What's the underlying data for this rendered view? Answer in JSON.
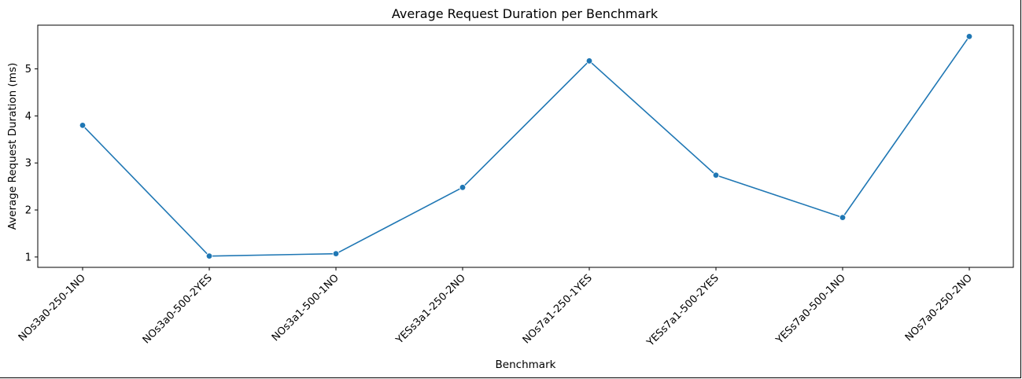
{
  "chart_data": {
    "type": "line",
    "title": "Average Request Duration per Benchmark",
    "xlabel": "Benchmark",
    "ylabel": "Average Request Duration (ms)",
    "categories": [
      "NOs3a0-250-1NO",
      "NOs3a0-500-2YES",
      "NOs3a1-500-1NO",
      "YESs3a1-250-2NO",
      "NOs7a1-250-1YES",
      "YESs7a1-500-2YES",
      "YESs7a0-500-1NO",
      "NOs7a0-250-2NO"
    ],
    "series": [
      {
        "values": [
          3.8,
          1.02,
          1.07,
          2.48,
          5.17,
          2.74,
          1.84,
          5.69
        ],
        "color": "#1f77b4",
        "marker": "circle"
      }
    ],
    "yticks": [
      1,
      2,
      3,
      4,
      5
    ],
    "ylim": [
      0.78,
      5.93
    ],
    "grid": false,
    "legend": "none"
  }
}
